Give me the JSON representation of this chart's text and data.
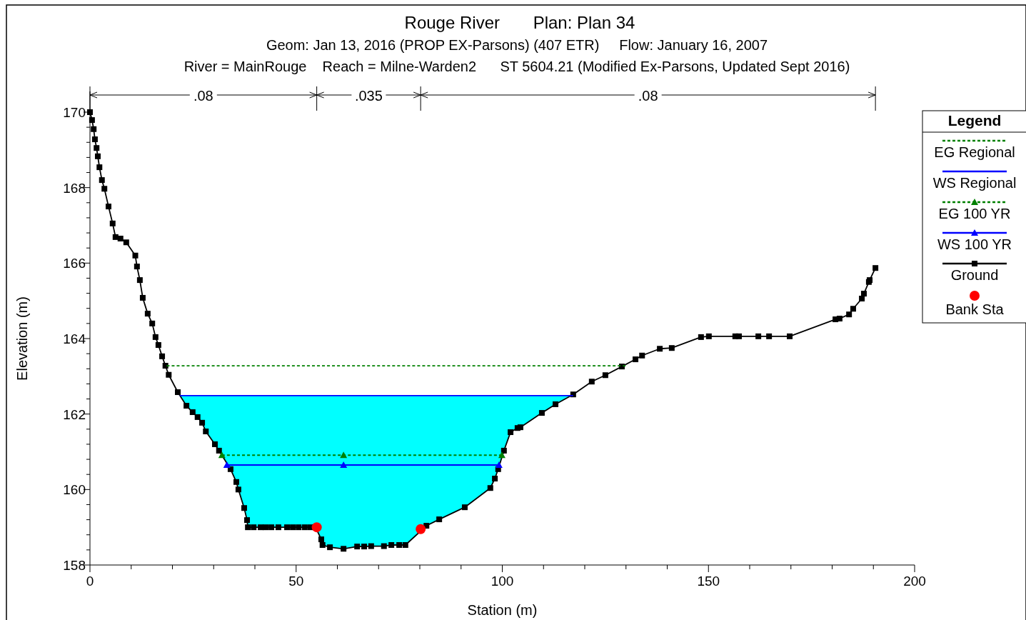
{
  "chart_data": {
    "type": "line",
    "title": "Rouge River       Plan: Plan 34",
    "subtitle": "Geom: Jan 13, 2016 (PROP EX-Parsons) (407 ETR)     Flow: January 16, 2007\nRiver = MainRouge    Reach = Milne-Warden2      ST 5604.21 (Modified Ex-Parsons, Updated Sept 2016)",
    "xlabel": "Station (m)",
    "ylabel": "Elevation (m)",
    "legend_title": "Legend",
    "legend": "top right",
    "xlim": [
      0,
      200
    ],
    "xticks": [
      0,
      {
        "value": 10,
        "label": null
      },
      {
        "value": 20,
        "label": null
      },
      {
        "value": 30,
        "label": null
      },
      {
        "value": 40,
        "label": null
      },
      50,
      {
        "value": 60,
        "label": null
      },
      {
        "value": 70,
        "label": null
      },
      {
        "value": 80,
        "label": null
      },
      {
        "value": 90,
        "label": null
      },
      100,
      {
        "value": 110,
        "label": null
      },
      {
        "value": 120,
        "label": null
      },
      {
        "value": 130,
        "label": null
      },
      {
        "value": 140,
        "label": null
      },
      150,
      {
        "value": 160,
        "label": null
      },
      {
        "value": 170,
        "label": null
      },
      {
        "value": 180,
        "label": null
      },
      {
        "value": 190,
        "label": null
      },
      200
    ],
    "ylim": [
      158,
      170
    ],
    "yticks": [
      158,
      {
        "value": 158.4,
        "label": null
      },
      {
        "value": 158.8,
        "label": null
      },
      {
        "value": 159.2,
        "label": null
      },
      {
        "value": 159.6,
        "label": null
      },
      160,
      {
        "value": 160.4,
        "label": null
      },
      {
        "value": 160.8,
        "label": null
      },
      {
        "value": 161.2,
        "label": null
      },
      {
        "value": 161.6,
        "label": null
      },
      162,
      {
        "value": 162.4,
        "label": null
      },
      {
        "value": 162.8,
        "label": null
      },
      {
        "value": 163.2,
        "label": null
      },
      {
        "value": 163.6,
        "label": null
      },
      164,
      {
        "value": 164.4,
        "label": null
      },
      {
        "value": 164.8,
        "label": null
      },
      {
        "value": 165.2,
        "label": null
      },
      {
        "value": 165.6,
        "label": null
      },
      166,
      {
        "value": 166.4,
        "label": null
      },
      {
        "value": 166.8,
        "label": null
      },
      {
        "value": 167.2,
        "label": null
      },
      {
        "value": 167.6,
        "label": null
      },
      168,
      {
        "value": 168.4,
        "label": null
      },
      {
        "value": 168.8,
        "label": null
      },
      {
        "value": 169.2,
        "label": null
      },
      {
        "value": 169.6,
        "label": null
      },
      170
    ],
    "annotations": [
      ".08",
      ".035",
      ".08"
    ],
    "series": [
      {
        "name": "EG Regional",
        "color": "#008000",
        "line_style": "dashed",
        "marker": "none",
        "x": [
          18.6,
          129.9
        ],
        "values": [
          163.28,
          163.28
        ]
      },
      {
        "name": "WS Regional",
        "color": "#0000ff",
        "line_style": "solid",
        "marker": "none",
        "x": [
          21.8,
          117.2
        ],
        "values": [
          162.49,
          162.49
        ]
      },
      {
        "name": "EG 100 YR",
        "color": "#008000",
        "line_style": "dashed",
        "marker": "triangle",
        "x": [
          32.0,
          61.5,
          99.9
        ],
        "values": [
          160.91,
          160.91,
          160.91
        ]
      },
      {
        "name": "WS 100 YR",
        "color": "#0000ff",
        "line_style": "solid",
        "marker": "triangle",
        "x": [
          33.2,
          61.5,
          99.2
        ],
        "values": [
          160.65,
          160.65,
          160.65
        ]
      },
      {
        "name": "Ground",
        "color": "#000000",
        "line_style": "solid",
        "marker": "square",
        "x": [
          0,
          0.5,
          0.9,
          1.2,
          1.6,
          1.9,
          2.3,
          2.9,
          3.5,
          4.5,
          5.5,
          6.2,
          7.4,
          8.8,
          11.0,
          11.4,
          12.1,
          12.8,
          14.0,
          15.1,
          15.9,
          16.6,
          17.5,
          18.3,
          19.1,
          21.3,
          23.4,
          24.9,
          26.1,
          27.2,
          28.1,
          30.3,
          31.3,
          34.1,
          35.5,
          36.0,
          37.4,
          38.1,
          38.3,
          39.7,
          41.4,
          42.6,
          44.0,
          45.7,
          47.8,
          49.2,
          50.6,
          52.1,
          53.5,
          54.7,
          56.1,
          56.4,
          58.2,
          61.5,
          64.8,
          66.5,
          68.2,
          71.3,
          73.1,
          75.0,
          76.5,
          81.6,
          84.7,
          90.9,
          97.1,
          98.2,
          99.0,
          100.4,
          102.0,
          103.7,
          104.4,
          109.6,
          112.9,
          117.2,
          121.7,
          125.0,
          129.0,
          132.3,
          133.9,
          138.2,
          141.1,
          148.2,
          150.1,
          156.5,
          157.4,
          162.1,
          164.7,
          169.7,
          180.8,
          181.8,
          184.1,
          185.1,
          187.2,
          187.7,
          188.9,
          189.1,
          190.5
        ],
        "values": [
          170.0,
          169.79,
          169.55,
          169.28,
          169.05,
          168.83,
          168.54,
          168.2,
          167.97,
          167.5,
          167.05,
          166.69,
          166.65,
          166.55,
          166.2,
          165.91,
          165.55,
          165.08,
          164.66,
          164.4,
          164.04,
          163.83,
          163.53,
          163.28,
          163.04,
          162.58,
          162.22,
          162.05,
          161.92,
          161.77,
          161.54,
          161.2,
          161.03,
          160.54,
          160.2,
          160.0,
          159.51,
          159.19,
          159.0,
          159.0,
          159.0,
          159.0,
          159.0,
          159.0,
          159.0,
          159.0,
          159.0,
          159.0,
          159.0,
          159.0,
          158.68,
          158.53,
          158.47,
          158.43,
          158.49,
          158.49,
          158.5,
          158.5,
          158.53,
          158.53,
          158.53,
          159.04,
          159.21,
          159.53,
          160.04,
          160.29,
          160.54,
          161.03,
          161.52,
          161.63,
          161.65,
          162.03,
          162.26,
          162.52,
          162.86,
          163.03,
          163.26,
          163.45,
          163.55,
          163.73,
          163.75,
          164.04,
          164.06,
          164.06,
          164.06,
          164.06,
          164.06,
          164.06,
          164.51,
          164.53,
          164.64,
          164.79,
          165.06,
          165.19,
          165.5,
          165.55,
          165.87
        ]
      },
      {
        "name": "Bank Sta",
        "type": "scatter",
        "color": "#ff0000",
        "marker": "circle",
        "x": [
          55.0,
          80.2
        ],
        "values": [
          159.0,
          158.95
        ]
      }
    ]
  }
}
